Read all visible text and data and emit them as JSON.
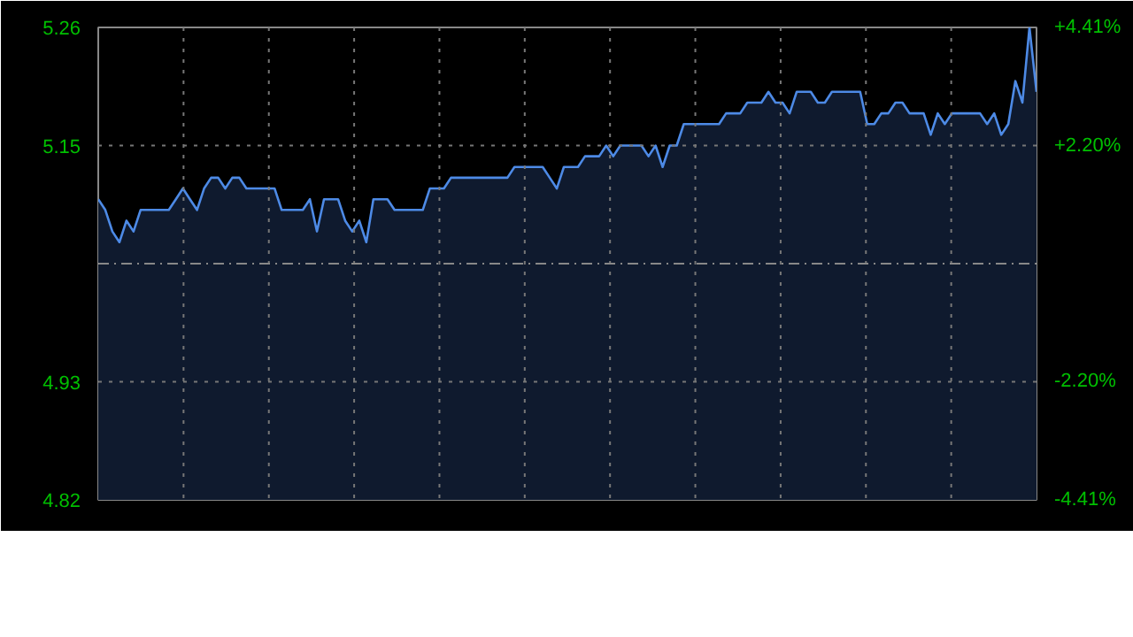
{
  "chart_data": {
    "type": "area",
    "categories": [
      null,
      null,
      null,
      null,
      null,
      null,
      null,
      null,
      null,
      null,
      null,
      null,
      null,
      null,
      null,
      null,
      null,
      null,
      null,
      null,
      null,
      null,
      null,
      null,
      null,
      null,
      null,
      null,
      null,
      null,
      null,
      null,
      null,
      null,
      null,
      null,
      null,
      null,
      null,
      null,
      null,
      null,
      null,
      null,
      null,
      null,
      null,
      null,
      null,
      null,
      null,
      null,
      null,
      null,
      null,
      null,
      null,
      null,
      null,
      null,
      null,
      null,
      null,
      null,
      null,
      null,
      null,
      null,
      null,
      null,
      null,
      null,
      null,
      null,
      null,
      null,
      null,
      null,
      null,
      null,
      null,
      null,
      null,
      null,
      null,
      null,
      null,
      null,
      null,
      null,
      null,
      null,
      null,
      null,
      null,
      null,
      null,
      null,
      null,
      null,
      null,
      null,
      null,
      null,
      null,
      null,
      null,
      null,
      null,
      null,
      null,
      null,
      null,
      null,
      null,
      null,
      null,
      null,
      null,
      null,
      null,
      null,
      null,
      null,
      null,
      null,
      null,
      null,
      null,
      null,
      null,
      null,
      null,
      null
    ],
    "values": [
      5.1,
      5.09,
      5.07,
      5.06,
      5.08,
      5.07,
      5.09,
      5.09,
      5.09,
      5.09,
      5.09,
      5.1,
      5.11,
      5.1,
      5.09,
      5.11,
      5.12,
      5.12,
      5.11,
      5.12,
      5.12,
      5.11,
      5.11,
      5.11,
      5.11,
      5.11,
      5.09,
      5.09,
      5.09,
      5.09,
      5.1,
      5.07,
      5.1,
      5.1,
      5.1,
      5.08,
      5.07,
      5.08,
      5.06,
      5.1,
      5.1,
      5.1,
      5.09,
      5.09,
      5.09,
      5.09,
      5.09,
      5.11,
      5.11,
      5.11,
      5.12,
      5.12,
      5.12,
      5.12,
      5.12,
      5.12,
      5.12,
      5.12,
      5.12,
      5.13,
      5.13,
      5.13,
      5.13,
      5.13,
      5.12,
      5.11,
      5.13,
      5.13,
      5.13,
      5.14,
      5.14,
      5.14,
      5.15,
      5.14,
      5.15,
      5.15,
      5.15,
      5.15,
      5.14,
      5.15,
      5.13,
      5.15,
      5.15,
      5.17,
      5.17,
      5.17,
      5.17,
      5.17,
      5.17,
      5.18,
      5.18,
      5.18,
      5.19,
      5.19,
      5.19,
      5.2,
      5.19,
      5.19,
      5.18,
      5.2,
      5.2,
      5.2,
      5.19,
      5.19,
      5.2,
      5.2,
      5.2,
      5.2,
      5.2,
      5.17,
      5.17,
      5.18,
      5.18,
      5.19,
      5.19,
      5.18,
      5.18,
      5.18,
      5.16,
      5.18,
      5.17,
      5.18,
      5.18,
      5.18,
      5.18,
      5.18,
      5.17,
      5.18,
      5.16,
      5.17,
      5.21,
      5.19,
      5.26,
      5.2
    ],
    "color": "#4d8ae6",
    "ylim": [
      4.82,
      5.26
    ],
    "yticks": [
      5.26,
      5.15,
      4.93,
      4.82
    ],
    "y2lim": [
      -4.41,
      4.41
    ],
    "y2ticks": [
      {
        "value": 4.41,
        "label": "+4.41%"
      },
      {
        "value": 2.2,
        "label": "+2.20%"
      },
      {
        "value": -2.2,
        "label": "-2.20%"
      },
      {
        "value": -4.41,
        "label": "-4.41%"
      }
    ],
    "ref_lines": [
      {
        "axis": "y",
        "value": 5.04,
        "color": "#888888",
        "line_style": "dashed"
      }
    ],
    "grid": true
  }
}
